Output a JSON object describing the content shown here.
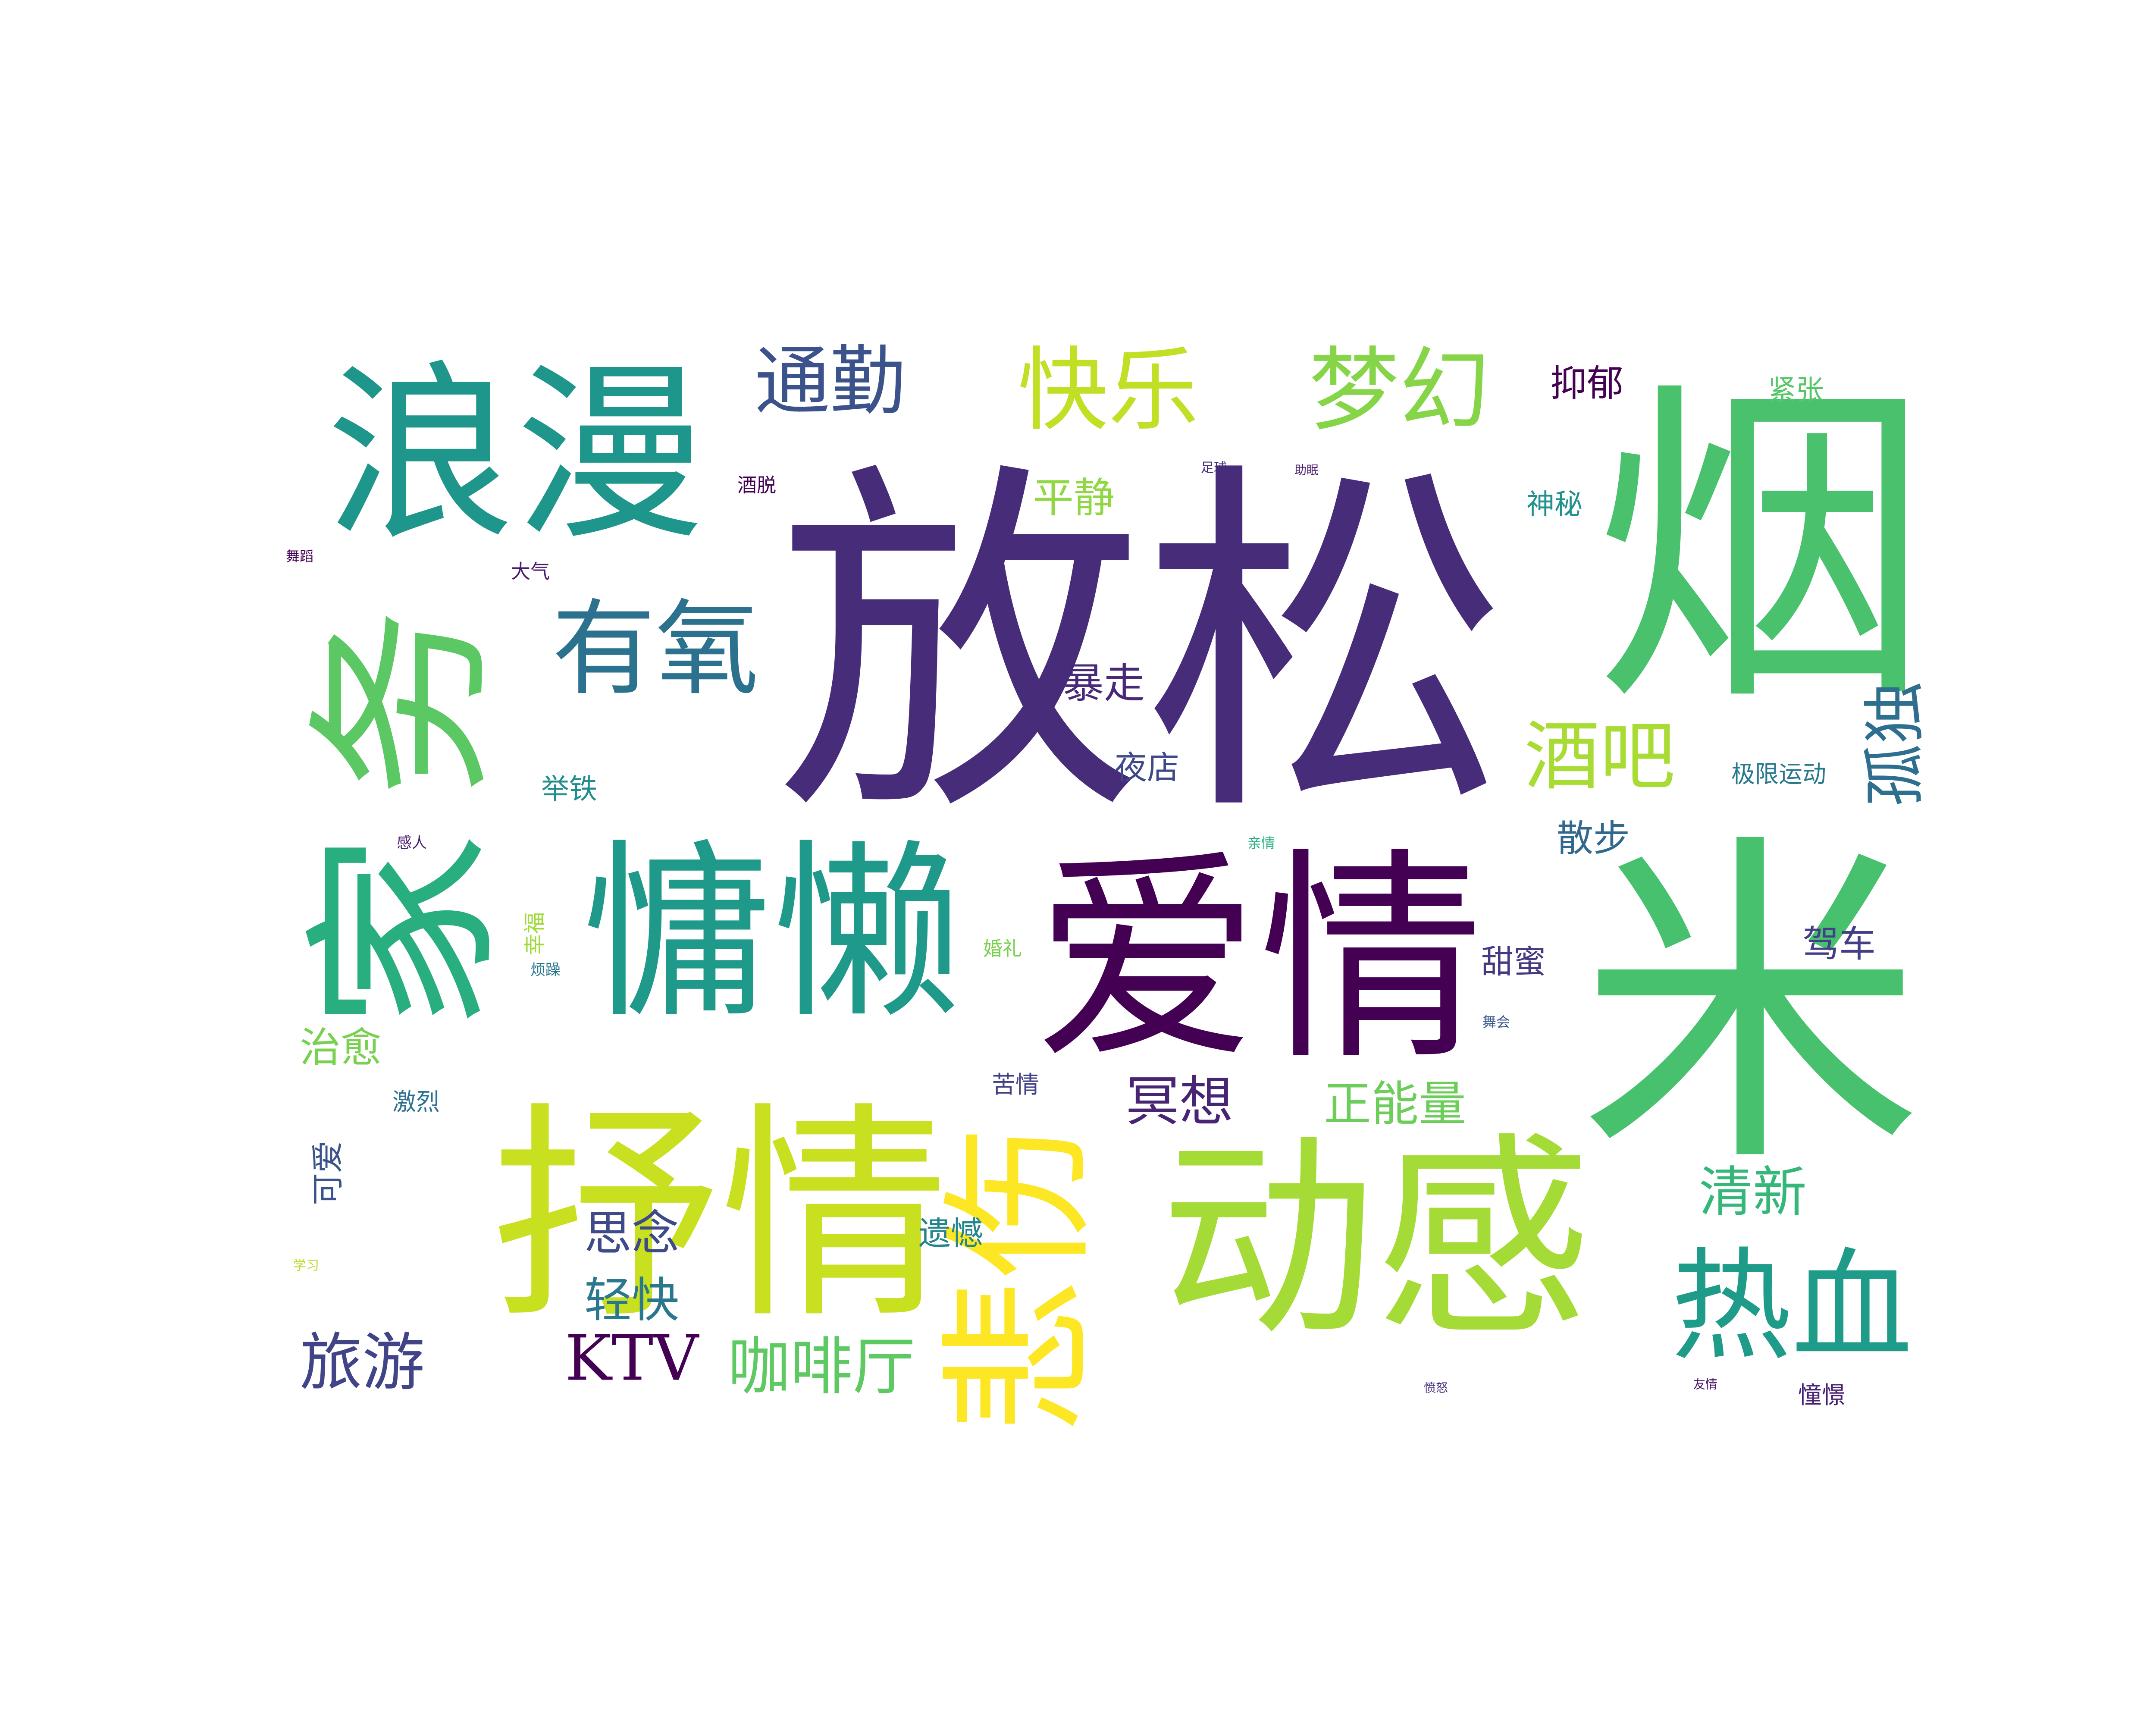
{
  "words": [
    {
      "text": "放松",
      "color": "#472c7a"
    },
    {
      "text": "烟",
      "color": "#4ac16d"
    },
    {
      "text": "米",
      "color": "#48c16e"
    },
    {
      "text": "爱情",
      "color": "#440154"
    },
    {
      "text": "动感",
      "color": "#a5db36"
    },
    {
      "text": "抒情",
      "color": "#c8e020"
    },
    {
      "text": "慵懒",
      "color": "#1f998a"
    },
    {
      "text": "浪漫",
      "color": "#1f968b"
    },
    {
      "text": "家",
      "color": "#29af7f"
    },
    {
      "text": "务",
      "color": "#5cc863"
    },
    {
      "text": "悲伤",
      "color": "#fde725"
    },
    {
      "text": "有氧",
      "color": "#2c728e"
    },
    {
      "text": "热血",
      "color": "#1e9c89"
    },
    {
      "text": "快乐",
      "color": "#c0df25"
    },
    {
      "text": "梦幻",
      "color": "#86d549"
    },
    {
      "text": "通勤",
      "color": "#3b528b"
    },
    {
      "text": "酒吧",
      "color": "#a8db34"
    },
    {
      "text": "孤独",
      "color": "#2e6e8e"
    },
    {
      "text": "咖啡厅",
      "color": "#5ec962"
    },
    {
      "text": "旅游",
      "color": "#414487"
    },
    {
      "text": "KTV",
      "color": "#440154"
    },
    {
      "text": "冥想",
      "color": "#482475"
    },
    {
      "text": "清新",
      "color": "#35b779"
    },
    {
      "text": "正能量",
      "color": "#6ccd5a"
    },
    {
      "text": "思念",
      "color": "#3e4a89"
    },
    {
      "text": "轻快",
      "color": "#2a788e"
    },
    {
      "text": "暴走",
      "color": "#482878"
    },
    {
      "text": "平静",
      "color": "#90d743"
    },
    {
      "text": "治愈",
      "color": "#7ad151"
    },
    {
      "text": "抑郁",
      "color": "#440154"
    },
    {
      "text": "散步",
      "color": "#31688e"
    },
    {
      "text": "驾车",
      "color": "#433e85"
    },
    {
      "text": "遗憾",
      "color": "#25858e"
    },
    {
      "text": "甜蜜",
      "color": "#443a83"
    },
    {
      "text": "可爱",
      "color": "#3b528b"
    },
    {
      "text": "夜店",
      "color": "#3e4989"
    },
    {
      "text": "神秘",
      "color": "#21918c"
    },
    {
      "text": "举铁",
      "color": "#228d8d"
    },
    {
      "text": "紧张",
      "color": "#56c667"
    },
    {
      "text": "极限运动",
      "color": "#2a788e"
    },
    {
      "text": "苦情",
      "color": "#424186"
    },
    {
      "text": "激烈",
      "color": "#2c718e"
    },
    {
      "text": "幸福",
      "color": "#a0da39"
    },
    {
      "text": "憧憬",
      "color": "#482173"
    },
    {
      "text": "酒脱",
      "color": "#440154"
    },
    {
      "text": "大气",
      "color": "#481b6d"
    },
    {
      "text": "婚礼",
      "color": "#7ad151"
    },
    {
      "text": "烦躁",
      "color": "#2a768e"
    },
    {
      "text": "感人",
      "color": "#481f70"
    },
    {
      "text": "舞蹈",
      "color": "#440154"
    },
    {
      "text": "舞会",
      "color": "#39568c"
    },
    {
      "text": "亲情",
      "color": "#29af7f"
    },
    {
      "text": "学习",
      "color": "#b5de2b"
    },
    {
      "text": "足球",
      "color": "#472c7a"
    },
    {
      "text": "助眠",
      "color": "#481769"
    },
    {
      "text": "愤怒",
      "color": "#472d7b"
    },
    {
      "text": "友情",
      "color": "#481467"
    }
  ]
}
